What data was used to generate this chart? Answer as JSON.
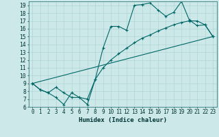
{
  "xlabel": "Humidex (Indice chaleur)",
  "bg_color": "#cce8e8",
  "grid_color": "#b0d4d4",
  "line_color": "#006666",
  "xlim": [
    -0.5,
    23.5
  ],
  "ylim": [
    6,
    19.5
  ],
  "yticks": [
    6,
    7,
    8,
    9,
    10,
    11,
    12,
    13,
    14,
    15,
    16,
    17,
    18,
    19
  ],
  "xticks": [
    0,
    1,
    2,
    3,
    4,
    5,
    6,
    7,
    8,
    9,
    10,
    11,
    12,
    13,
    14,
    15,
    16,
    17,
    18,
    19,
    20,
    21,
    22,
    23
  ],
  "line1_x": [
    0,
    1,
    2,
    3,
    4,
    5,
    6,
    7,
    8,
    9,
    10,
    11,
    12,
    13,
    14,
    15,
    16,
    17,
    18,
    19,
    20,
    21,
    22,
    23
  ],
  "line1_y": [
    9.0,
    8.2,
    7.8,
    7.2,
    6.3,
    7.8,
    7.2,
    6.3,
    9.5,
    13.5,
    16.3,
    16.3,
    15.8,
    19.0,
    19.1,
    19.3,
    18.4,
    17.6,
    18.1,
    19.5,
    17.1,
    16.4,
    16.5,
    15.0
  ],
  "line2_x": [
    0,
    1,
    2,
    3,
    4,
    5,
    6,
    7,
    8,
    9,
    10,
    11,
    12,
    13,
    14,
    15,
    16,
    17,
    18,
    19,
    20,
    21,
    22,
    23
  ],
  "line2_y": [
    9.0,
    8.2,
    7.8,
    8.5,
    7.8,
    7.2,
    7.2,
    7.0,
    9.5,
    11.0,
    12.0,
    12.8,
    13.5,
    14.2,
    14.8,
    15.2,
    15.7,
    16.1,
    16.5,
    16.8,
    17.0,
    17.0,
    16.5,
    15.0
  ],
  "line3_x": [
    0,
    23
  ],
  "line3_y": [
    9.0,
    15.0
  ]
}
